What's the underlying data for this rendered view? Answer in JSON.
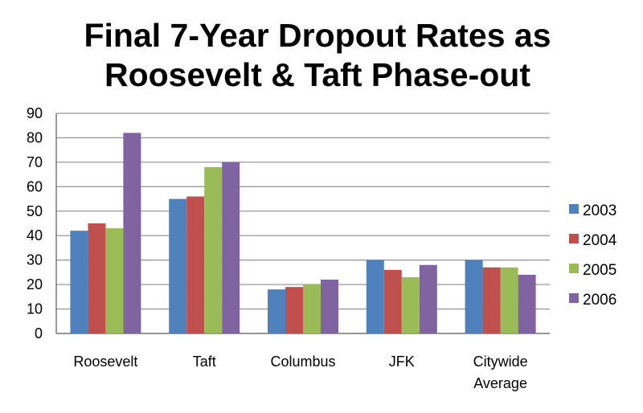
{
  "chart_data": {
    "type": "bar",
    "title_lines": [
      "Final 7-Year Dropout Rates as",
      "Roosevelt & Taft Phase-out"
    ],
    "categories": [
      [
        "Roosevelt"
      ],
      [
        "Taft"
      ],
      [
        "Columbus"
      ],
      [
        "JFK"
      ],
      [
        "Citywide",
        "Average"
      ]
    ],
    "series": [
      {
        "name": "2003",
        "color": "#4f81bd",
        "values": [
          42,
          55,
          18,
          30,
          30
        ]
      },
      {
        "name": "2004",
        "color": "#c0504d",
        "values": [
          45,
          56,
          19,
          26,
          27
        ]
      },
      {
        "name": "2005",
        "color": "#9bbb59",
        "values": [
          43,
          68,
          20,
          23,
          27
        ]
      },
      {
        "name": "2006",
        "color": "#8064a2",
        "values": [
          82,
          70,
          22,
          28,
          24
        ]
      }
    ],
    "yticks": [
      0,
      10,
      20,
      30,
      40,
      50,
      60,
      70,
      80,
      90
    ],
    "ylim": [
      0,
      90
    ],
    "grid": true,
    "legend_position": "right"
  }
}
